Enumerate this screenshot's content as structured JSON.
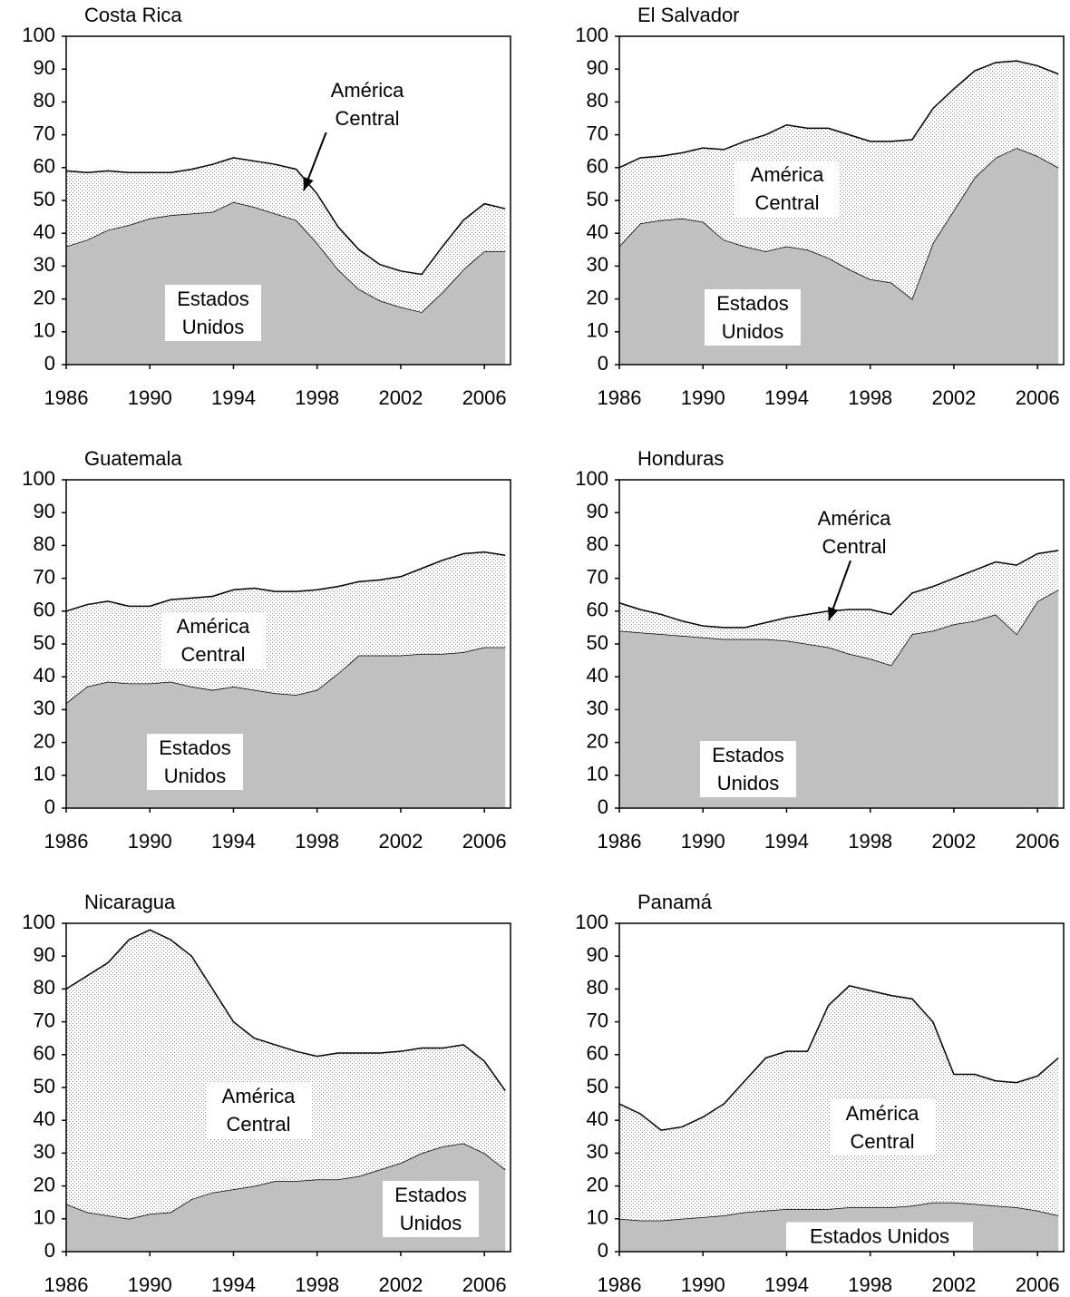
{
  "chart_data": [
    {
      "type": "stacked-area",
      "title": "Costa Rica",
      "x": [
        1986,
        1987,
        1988,
        1989,
        1990,
        1991,
        1992,
        1993,
        1994,
        1995,
        1996,
        1997,
        1998,
        1999,
        2000,
        2001,
        2002,
        2003,
        2004,
        2005,
        2006,
        2007
      ],
      "series": [
        {
          "name": "Estados Unidos",
          "color": "#c0c0c0",
          "values": [
            36,
            38,
            41,
            42.5,
            44.5,
            45.5,
            46,
            46.5,
            49.5,
            48,
            46,
            44,
            37,
            29,
            23,
            19.5,
            17.5,
            16,
            22,
            29,
            34.5,
            34.5
          ]
        },
        {
          "name": "América Central",
          "color": "#808080",
          "pattern": "dots",
          "values": [
            23,
            20.5,
            18,
            16,
            14,
            13,
            13.5,
            14.5,
            13.5,
            14,
            15,
            15.5,
            15,
            13,
            12,
            11,
            11,
            11.5,
            14,
            15,
            14.5,
            13
          ]
        }
      ],
      "xlim": [
        1986,
        2007.25
      ],
      "xticks": [
        1986,
        1990,
        1994,
        1998,
        2002,
        2006
      ],
      "ylim": [
        0,
        100
      ],
      "yticks": [
        0,
        10,
        20,
        30,
        40,
        50,
        60,
        70,
        80,
        90,
        100
      ]
    },
    {
      "type": "stacked-area",
      "title": "El Salvador",
      "x": [
        1986,
        1987,
        1988,
        1989,
        1990,
        1991,
        1992,
        1993,
        1994,
        1995,
        1996,
        1997,
        1998,
        1999,
        2000,
        2001,
        2002,
        2003,
        2004,
        2005,
        2006,
        2007
      ],
      "series": [
        {
          "name": "Estados Unidos",
          "color": "#c0c0c0",
          "values": [
            36,
            43,
            44,
            44.5,
            43.5,
            38,
            36,
            34.5,
            36,
            35,
            32.5,
            29,
            26,
            25,
            20,
            37,
            47,
            57,
            63,
            66,
            63.5,
            60
          ]
        },
        {
          "name": "América Central",
          "color": "#808080",
          "pattern": "dots",
          "values": [
            24,
            20,
            19.5,
            20,
            22.5,
            27.5,
            32,
            35.5,
            37,
            37,
            39.5,
            41,
            42,
            43,
            48.5,
            41,
            37,
            32.5,
            29,
            26.5,
            27.5,
            28.5
          ]
        }
      ],
      "xlim": [
        1986,
        2007.25
      ],
      "xticks": [
        1986,
        1990,
        1994,
        1998,
        2002,
        2006
      ],
      "ylim": [
        0,
        100
      ],
      "yticks": [
        0,
        10,
        20,
        30,
        40,
        50,
        60,
        70,
        80,
        90,
        100
      ]
    },
    {
      "type": "stacked-area",
      "title": "Guatemala",
      "x": [
        1986,
        1987,
        1988,
        1989,
        1990,
        1991,
        1992,
        1993,
        1994,
        1995,
        1996,
        1997,
        1998,
        1999,
        2000,
        2001,
        2002,
        2003,
        2004,
        2005,
        2006,
        2007
      ],
      "series": [
        {
          "name": "Estados Unidos",
          "color": "#c0c0c0",
          "values": [
            32,
            37,
            38.5,
            38,
            38,
            38.5,
            37,
            36,
            37,
            36,
            35,
            34.5,
            36,
            41,
            46.5,
            46.5,
            46.5,
            47,
            47,
            47.5,
            49,
            49
          ]
        },
        {
          "name": "América Central",
          "color": "#808080",
          "pattern": "dots",
          "values": [
            28,
            25,
            24.5,
            23.5,
            23.5,
            25,
            27,
            28.5,
            29.5,
            31,
            31,
            31.5,
            30.5,
            26.5,
            22.5,
            23,
            24,
            26,
            28.5,
            30,
            29,
            28
          ]
        }
      ],
      "xlim": [
        1986,
        2007.25
      ],
      "xticks": [
        1986,
        1990,
        1994,
        1998,
        2002,
        2006
      ],
      "ylim": [
        0,
        100
      ],
      "yticks": [
        0,
        10,
        20,
        30,
        40,
        50,
        60,
        70,
        80,
        90,
        100
      ]
    },
    {
      "type": "stacked-area",
      "title": "Honduras",
      "x": [
        1986,
        1987,
        1988,
        1989,
        1990,
        1991,
        1992,
        1993,
        1994,
        1995,
        1996,
        1997,
        1998,
        1999,
        2000,
        2001,
        2002,
        2003,
        2004,
        2005,
        2006,
        2007
      ],
      "series": [
        {
          "name": "Estados Unidos",
          "color": "#c0c0c0",
          "values": [
            54,
            53.5,
            53,
            52.5,
            52,
            51.5,
            51.5,
            51.5,
            51,
            50,
            49,
            47,
            45.5,
            43.5,
            53,
            54,
            56,
            57,
            59,
            53,
            63,
            66.5
          ]
        },
        {
          "name": "América Central",
          "color": "#808080",
          "pattern": "dots",
          "values": [
            8.5,
            7,
            6,
            4.5,
            3.5,
            3.5,
            3.5,
            5,
            7,
            9,
            11,
            13.5,
            15,
            15.5,
            12.5,
            13.5,
            14,
            15.5,
            16,
            21,
            14.5,
            12
          ]
        }
      ],
      "xlim": [
        1986,
        2007.25
      ],
      "xticks": [
        1986,
        1990,
        1994,
        1998,
        2002,
        2006
      ],
      "ylim": [
        0,
        100
      ],
      "yticks": [
        0,
        10,
        20,
        30,
        40,
        50,
        60,
        70,
        80,
        90,
        100
      ]
    },
    {
      "type": "stacked-area",
      "title": "Nicaragua",
      "x": [
        1986,
        1987,
        1988,
        1989,
        1990,
        1991,
        1992,
        1993,
        1994,
        1995,
        1996,
        1997,
        1998,
        1999,
        2000,
        2001,
        2002,
        2003,
        2004,
        2005,
        2006,
        2007
      ],
      "series": [
        {
          "name": "Estados Unidos",
          "color": "#c0c0c0",
          "values": [
            14.5,
            12,
            11,
            10,
            11.5,
            12,
            16,
            18,
            19,
            20,
            21.5,
            21.5,
            22,
            22,
            23,
            25,
            27,
            30,
            32,
            33,
            30,
            25
          ]
        },
        {
          "name": "América Central",
          "color": "#808080",
          "pattern": "dots",
          "values": [
            65.5,
            72,
            77,
            85,
            86.5,
            83,
            74,
            62,
            51,
            45,
            41.5,
            39.5,
            37.5,
            38.5,
            37.5,
            35.5,
            34,
            32,
            30,
            30,
            28,
            24
          ]
        }
      ],
      "xlim": [
        1986,
        2007.25
      ],
      "xticks": [
        1986,
        1990,
        1994,
        1998,
        2002,
        2006
      ],
      "ylim": [
        0,
        100
      ],
      "yticks": [
        0,
        10,
        20,
        30,
        40,
        50,
        60,
        70,
        80,
        90,
        100
      ]
    },
    {
      "type": "stacked-area",
      "title": "Panamá",
      "x": [
        1986,
        1987,
        1988,
        1989,
        1990,
        1991,
        1992,
        1993,
        1994,
        1995,
        1996,
        1997,
        1998,
        1999,
        2000,
        2001,
        2002,
        2003,
        2004,
        2005,
        2006,
        2007
      ],
      "series": [
        {
          "name": "Estados Unidos",
          "color": "#c0c0c0",
          "values": [
            10,
            9.5,
            9.5,
            10,
            10.5,
            11,
            12,
            12.5,
            13,
            13,
            13,
            13.5,
            13.5,
            13.5,
            14,
            15,
            15,
            14.5,
            14,
            13.5,
            12.5,
            11
          ]
        },
        {
          "name": "América Central",
          "color": "#808080",
          "pattern": "dots",
          "values": [
            35,
            32.5,
            27.5,
            28,
            30.5,
            34,
            40,
            46.5,
            48,
            48,
            62,
            67.5,
            66,
            64.5,
            63,
            55,
            39,
            39.5,
            38,
            38,
            41,
            48
          ]
        }
      ],
      "xlim": [
        1986,
        2007.25
      ],
      "xticks": [
        1986,
        1990,
        1994,
        1998,
        2002,
        2006
      ],
      "ylim": [
        0,
        100
      ],
      "yticks": [
        0,
        10,
        20,
        30,
        40,
        50,
        60,
        70,
        80,
        90,
        100
      ]
    }
  ]
}
